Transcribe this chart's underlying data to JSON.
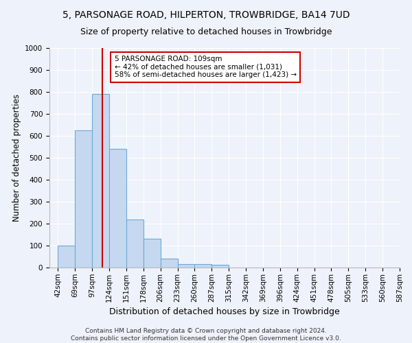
{
  "title": "5, PARSONAGE ROAD, HILPERTON, TROWBRIDGE, BA14 7UD",
  "subtitle": "Size of property relative to detached houses in Trowbridge",
  "xlabel": "Distribution of detached houses by size in Trowbridge",
  "ylabel": "Number of detached properties",
  "bar_values": [
    100,
    625,
    790,
    540,
    220,
    130,
    42,
    17,
    17,
    12,
    0,
    0,
    0,
    0,
    0,
    0,
    0,
    0,
    0,
    0
  ],
  "bin_labels": [
    "42sqm",
    "69sqm",
    "97sqm",
    "124sqm",
    "151sqm",
    "178sqm",
    "206sqm",
    "233sqm",
    "260sqm",
    "287sqm",
    "315sqm",
    "342sqm",
    "369sqm",
    "396sqm",
    "424sqm",
    "451sqm",
    "478sqm",
    "505sqm",
    "533sqm",
    "560sqm",
    "587sqm"
  ],
  "bar_color": "#c5d8f0",
  "bar_edge_color": "#6aaad4",
  "vline_color": "#cc0000",
  "vline_pos": 2.6,
  "annotation_text": "5 PARSONAGE ROAD: 109sqm\n← 42% of detached houses are smaller (1,031)\n58% of semi-detached houses are larger (1,423) →",
  "annotation_box_color": "#ffffff",
  "annotation_box_edge": "#cc0000",
  "ylim": [
    0,
    1000
  ],
  "yticks": [
    0,
    100,
    200,
    300,
    400,
    500,
    600,
    700,
    800,
    900,
    1000
  ],
  "footer_text": "Contains HM Land Registry data © Crown copyright and database right 2024.\nContains public sector information licensed under the Open Government Licence v3.0.",
  "background_color": "#eef2fa",
  "axes_background": "#eef2fa",
  "title_fontsize": 10,
  "subtitle_fontsize": 9,
  "tick_fontsize": 7.5,
  "ylabel_fontsize": 8.5,
  "xlabel_fontsize": 9,
  "footer_fontsize": 6.5
}
